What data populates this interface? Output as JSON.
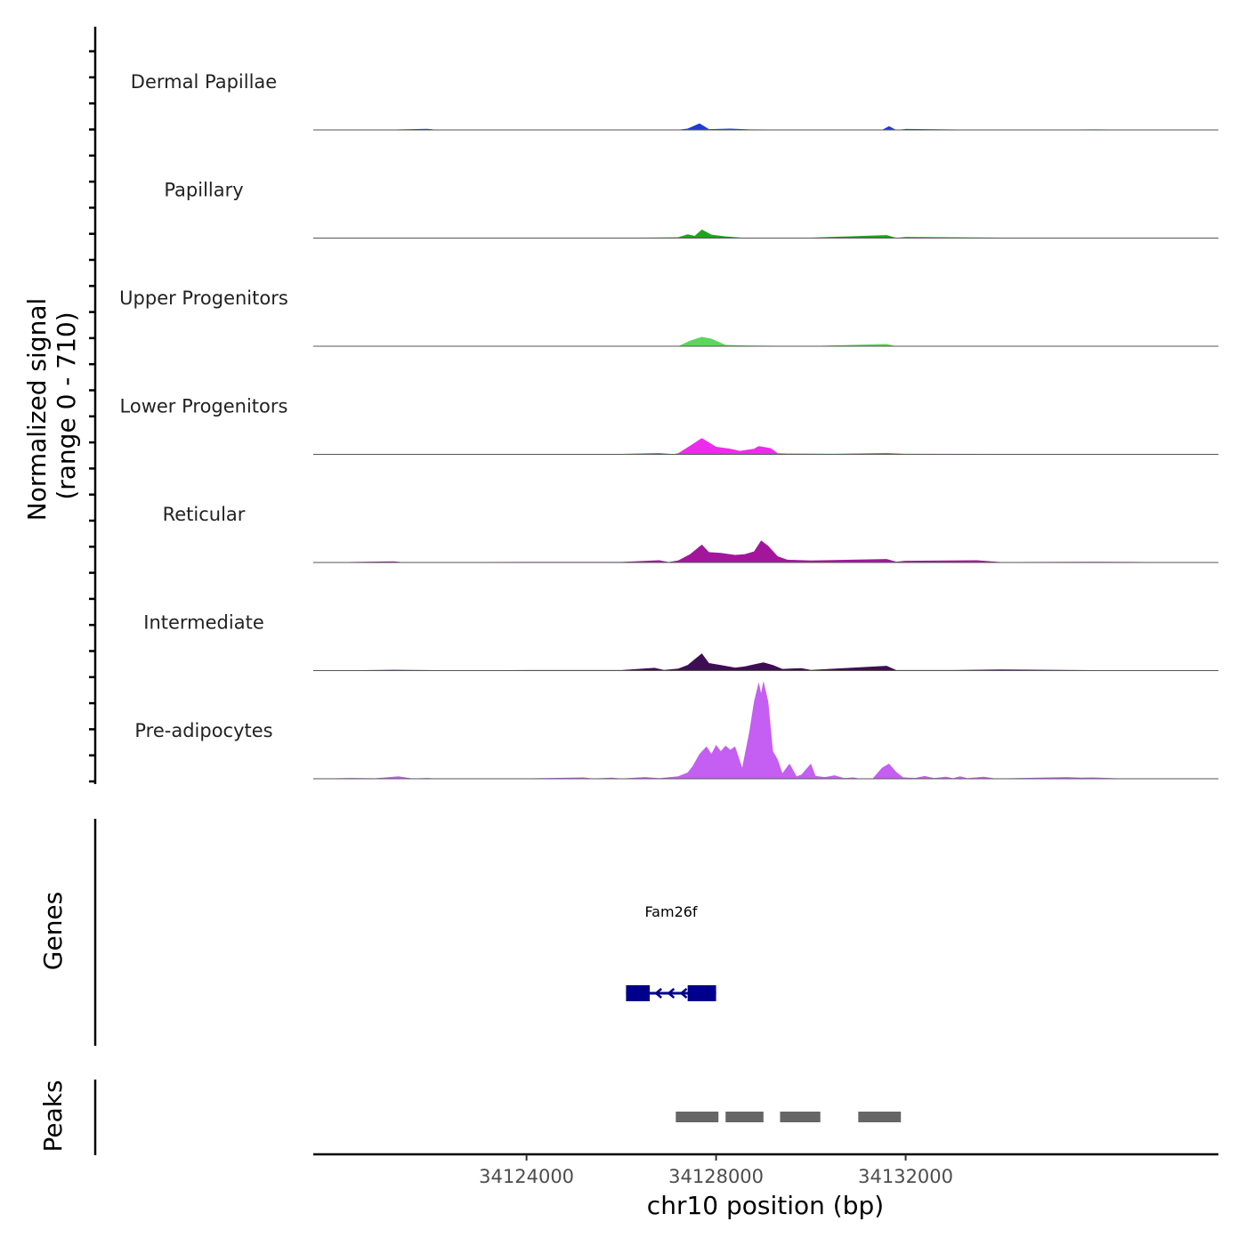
{
  "chart_data": {
    "type": "area",
    "title": "",
    "chromosome": "chr10",
    "xlabel": "chr10 position (bp)",
    "ylabel_line1": "Normalized signal",
    "ylabel_line2": "(range 0 - 710)",
    "ylim": [
      0,
      710
    ],
    "xlim": [
      34119500,
      34138600
    ],
    "x_ticks": [
      34124000,
      34128000,
      34132000
    ],
    "x_tick_labels": [
      "34124000",
      "34128000",
      "34132000"
    ],
    "series": [
      {
        "name": "Dermal Papillae",
        "color": "#1f3bd3",
        "points": [
          [
            34119500,
            0
          ],
          [
            34121000,
            1
          ],
          [
            34121900,
            8
          ],
          [
            34122100,
            1
          ],
          [
            34124000,
            1
          ],
          [
            34126000,
            2
          ],
          [
            34127200,
            2
          ],
          [
            34127400,
            10
          ],
          [
            34127650,
            48
          ],
          [
            34127850,
            6
          ],
          [
            34128300,
            10
          ],
          [
            34128700,
            4
          ],
          [
            34130000,
            2
          ],
          [
            34131500,
            0
          ],
          [
            34131650,
            28
          ],
          [
            34131800,
            0
          ],
          [
            34132000,
            7
          ],
          [
            34134000,
            0
          ],
          [
            34136000,
            4
          ],
          [
            34138600,
            0
          ]
        ]
      },
      {
        "name": "Papillary",
        "color": "#1fa31f",
        "points": [
          [
            34119500,
            0
          ],
          [
            34122000,
            2
          ],
          [
            34124000,
            2
          ],
          [
            34126000,
            2
          ],
          [
            34127200,
            6
          ],
          [
            34127400,
            28
          ],
          [
            34127550,
            16
          ],
          [
            34127700,
            62
          ],
          [
            34127900,
            25
          ],
          [
            34128200,
            12
          ],
          [
            34128600,
            2
          ],
          [
            34130000,
            3
          ],
          [
            34131600,
            22
          ],
          [
            34131800,
            2
          ],
          [
            34132000,
            8
          ],
          [
            34134000,
            3
          ],
          [
            34136000,
            3
          ],
          [
            34138600,
            0
          ]
        ]
      },
      {
        "name": "Upper Progenitors",
        "color": "#5cd65c",
        "points": [
          [
            34119500,
            0
          ],
          [
            34124000,
            2
          ],
          [
            34126000,
            0
          ],
          [
            34127200,
            0
          ],
          [
            34127450,
            40
          ],
          [
            34127700,
            68
          ],
          [
            34127900,
            55
          ],
          [
            34128200,
            10
          ],
          [
            34128600,
            6
          ],
          [
            34129000,
            4
          ],
          [
            34130000,
            2
          ],
          [
            34131600,
            16
          ],
          [
            34131800,
            0
          ],
          [
            34133000,
            2
          ],
          [
            34134000,
            0
          ],
          [
            34138600,
            0
          ]
        ]
      },
      {
        "name": "Lower Progenitors",
        "color": "#ee2aee",
        "points": [
          [
            34119500,
            0
          ],
          [
            34121500,
            3
          ],
          [
            34124000,
            3
          ],
          [
            34126000,
            3
          ],
          [
            34126800,
            10
          ],
          [
            34127100,
            2
          ],
          [
            34127200,
            8
          ],
          [
            34127450,
            62
          ],
          [
            34127700,
            118
          ],
          [
            34128000,
            55
          ],
          [
            34128300,
            40
          ],
          [
            34128500,
            25
          ],
          [
            34128800,
            40
          ],
          [
            34128900,
            60
          ],
          [
            34129150,
            45
          ],
          [
            34129300,
            8
          ],
          [
            34129500,
            6
          ],
          [
            34130500,
            4
          ],
          [
            34131600,
            10
          ],
          [
            34132000,
            4
          ],
          [
            34134000,
            3
          ],
          [
            34138600,
            0
          ]
        ]
      },
      {
        "name": "Reticular",
        "color": "#a3169b",
        "points": [
          [
            34119500,
            0
          ],
          [
            34121200,
            8
          ],
          [
            34121400,
            1
          ],
          [
            34123000,
            3
          ],
          [
            34124000,
            4
          ],
          [
            34126000,
            4
          ],
          [
            34126800,
            16
          ],
          [
            34127000,
            3
          ],
          [
            34127200,
            15
          ],
          [
            34127450,
            60
          ],
          [
            34127700,
            130
          ],
          [
            34127850,
            75
          ],
          [
            34128100,
            70
          ],
          [
            34128400,
            55
          ],
          [
            34128600,
            60
          ],
          [
            34128800,
            80
          ],
          [
            34128950,
            160
          ],
          [
            34129100,
            120
          ],
          [
            34129300,
            45
          ],
          [
            34129500,
            20
          ],
          [
            34130000,
            15
          ],
          [
            34131600,
            25
          ],
          [
            34131800,
            6
          ],
          [
            34132000,
            12
          ],
          [
            34133500,
            16
          ],
          [
            34134000,
            3
          ],
          [
            34136000,
            5
          ],
          [
            34138600,
            0
          ]
        ]
      },
      {
        "name": "Intermediate",
        "color": "#3d0f52",
        "points": [
          [
            34119500,
            0
          ],
          [
            34121200,
            6
          ],
          [
            34122500,
            2
          ],
          [
            34124000,
            4
          ],
          [
            34126000,
            4
          ],
          [
            34126700,
            20
          ],
          [
            34126900,
            5
          ],
          [
            34127200,
            15
          ],
          [
            34127400,
            40
          ],
          [
            34127700,
            125
          ],
          [
            34127850,
            55
          ],
          [
            34128100,
            40
          ],
          [
            34128400,
            22
          ],
          [
            34128600,
            30
          ],
          [
            34128800,
            45
          ],
          [
            34129000,
            60
          ],
          [
            34129200,
            40
          ],
          [
            34129400,
            12
          ],
          [
            34129800,
            18
          ],
          [
            34130000,
            5
          ],
          [
            34131600,
            35
          ],
          [
            34131800,
            4
          ],
          [
            34133000,
            4
          ],
          [
            34134000,
            8
          ],
          [
            34136000,
            3
          ],
          [
            34138600,
            0
          ]
        ]
      },
      {
        "name": "Pre-adipocytes",
        "color": "#c55ef2",
        "points": [
          [
            34119500,
            0
          ],
          [
            34120300,
            6
          ],
          [
            34120800,
            3
          ],
          [
            34121300,
            18
          ],
          [
            34121600,
            2
          ],
          [
            34121900,
            6
          ],
          [
            34122200,
            0
          ],
          [
            34123500,
            0
          ],
          [
            34125200,
            10
          ],
          [
            34125400,
            2
          ],
          [
            34125800,
            8
          ],
          [
            34126000,
            2
          ],
          [
            34126500,
            12
          ],
          [
            34126800,
            4
          ],
          [
            34127200,
            18
          ],
          [
            34127400,
            45
          ],
          [
            34127500,
            90
          ],
          [
            34127650,
            180
          ],
          [
            34127800,
            235
          ],
          [
            34127900,
            180
          ],
          [
            34128000,
            245
          ],
          [
            34128100,
            200
          ],
          [
            34128200,
            240
          ],
          [
            34128300,
            210
          ],
          [
            34128400,
            235
          ],
          [
            34128550,
            80
          ],
          [
            34128700,
            340
          ],
          [
            34128800,
            560
          ],
          [
            34128900,
            700
          ],
          [
            34128950,
            620
          ],
          [
            34129000,
            710
          ],
          [
            34129100,
            560
          ],
          [
            34129200,
            200
          ],
          [
            34129300,
            140
          ],
          [
            34129400,
            40
          ],
          [
            34129550,
            110
          ],
          [
            34129700,
            18
          ],
          [
            34129800,
            30
          ],
          [
            34130000,
            110
          ],
          [
            34130100,
            20
          ],
          [
            34130300,
            12
          ],
          [
            34130500,
            25
          ],
          [
            34130700,
            5
          ],
          [
            34130900,
            10
          ],
          [
            34131000,
            3
          ],
          [
            34131300,
            0
          ],
          [
            34131500,
            80
          ],
          [
            34131650,
            110
          ],
          [
            34131800,
            50
          ],
          [
            34131950,
            10
          ],
          [
            34132200,
            6
          ],
          [
            34132400,
            20
          ],
          [
            34132600,
            5
          ],
          [
            34132850,
            15
          ],
          [
            34133000,
            4
          ],
          [
            34133150,
            18
          ],
          [
            34133300,
            4
          ],
          [
            34133650,
            15
          ],
          [
            34133900,
            2
          ],
          [
            34135400,
            12
          ],
          [
            34135700,
            8
          ],
          [
            34135950,
            10
          ],
          [
            34136400,
            4
          ],
          [
            34137000,
            0
          ],
          [
            34138600,
            0
          ]
        ]
      }
    ],
    "genes": [
      {
        "name": "Fam26f",
        "strand": "-",
        "exons": [
          [
            34126100,
            34126600
          ],
          [
            34127400,
            34128000
          ]
        ]
      }
    ],
    "peaks": [
      [
        34127150,
        34128050
      ],
      [
        34128200,
        34129000
      ],
      [
        34129350,
        34130200
      ],
      [
        34131000,
        34131900
      ]
    ],
    "gene_color": "#00008b",
    "peak_color": "#666666",
    "track_labels": {
      "genes": "Genes",
      "peaks": "Peaks"
    }
  }
}
